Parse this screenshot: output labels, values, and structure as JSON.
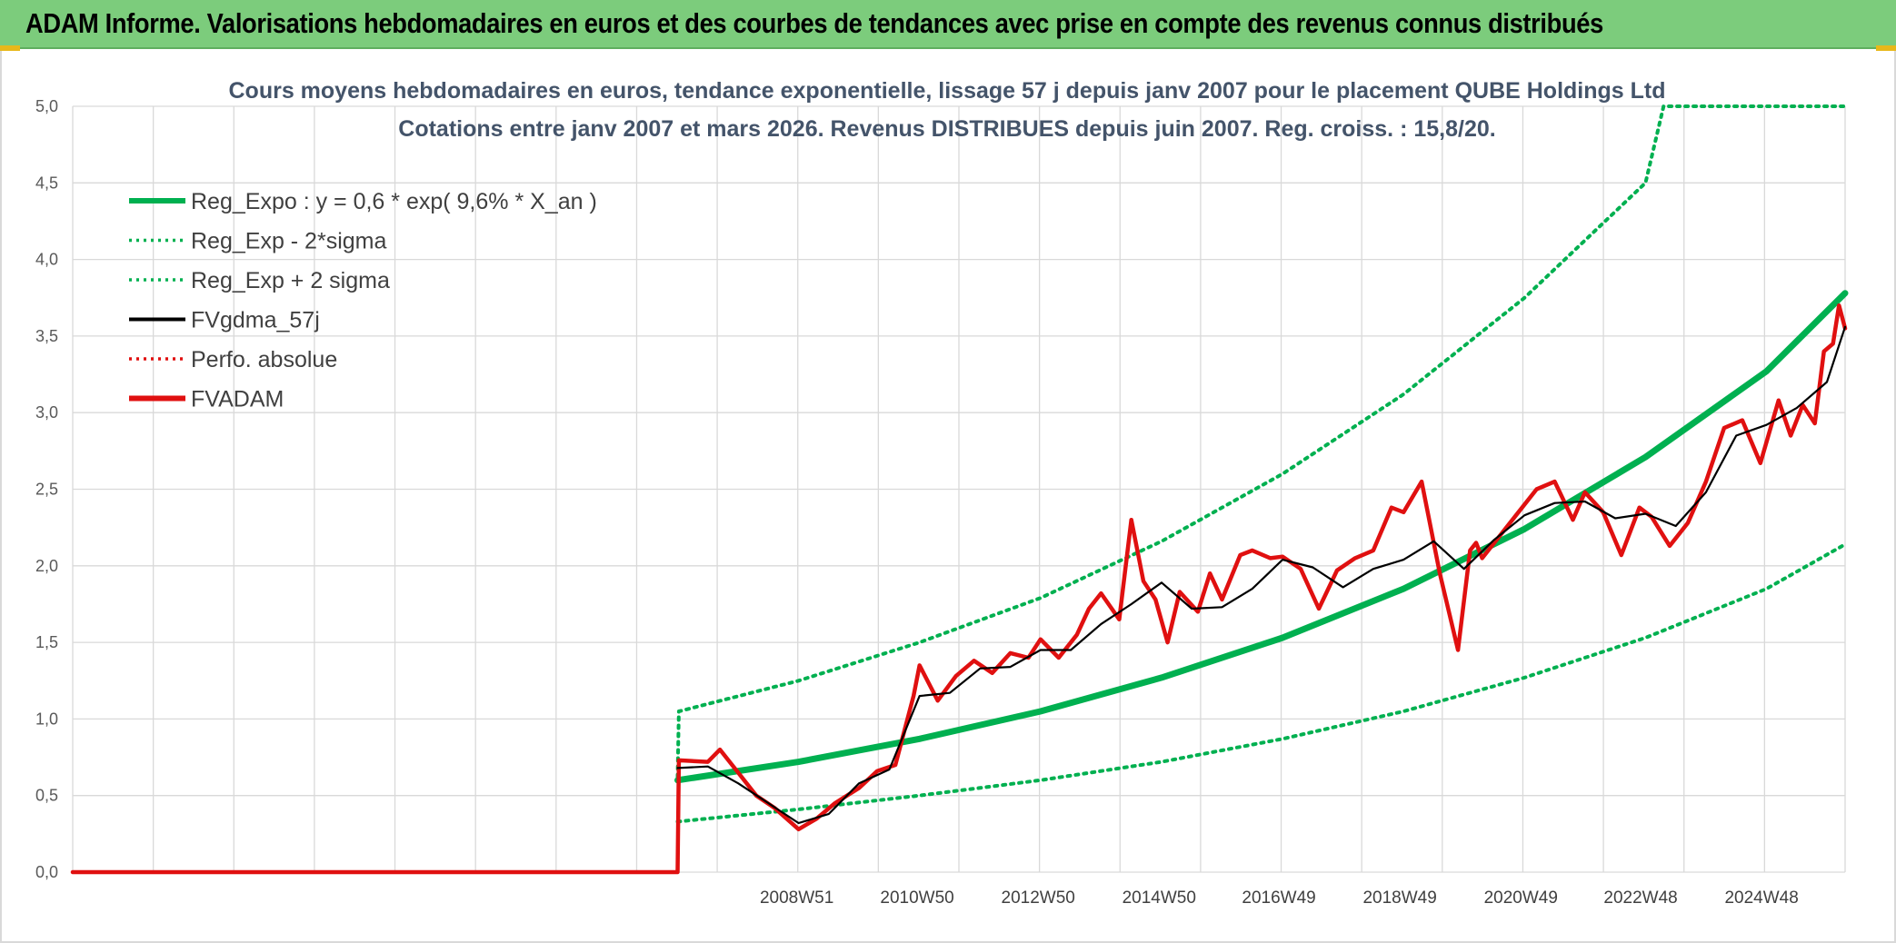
{
  "header": {
    "title": "ADAM Informe. Valorisations hebdomadaires en euros et des courbes de tendances avec prise en compte des revenus connus distribués"
  },
  "colors": {
    "header_bg": "#7ccc7c",
    "reg_expo": "#00b050",
    "fvgdma": "#000000",
    "fvadam": "#e01010",
    "perfo": "#e01010"
  },
  "chart_data": {
    "type": "line",
    "title": "Cours moyens hebdomadaires en euros, tendance exponentielle, lissage 57 j depuis janv 2007 pour le placement QUBE Holdings Ltd",
    "subtitle": "Cotations entre janv 2007 et mars 2026. Revenus DISTRIBUES depuis juin 2007. Reg. croiss. : 15,8/20.",
    "xlabel": "",
    "ylabel": "",
    "ylim": [
      0,
      5
    ],
    "y_ticks": [
      "0,0",
      "0,5",
      "1,0",
      "1,5",
      "2,0",
      "2,5",
      "3,0",
      "3,5",
      "4,0",
      "4,5",
      "5,0"
    ],
    "x_range": [
      1997.0,
      2026.3
    ],
    "x_ticks": [
      {
        "label": "2008W51",
        "x": 2008.97
      },
      {
        "label": "2010W50",
        "x": 2010.96
      },
      {
        "label": "2012W50",
        "x": 2012.96
      },
      {
        "label": "2014W50",
        "x": 2014.96
      },
      {
        "label": "2016W49",
        "x": 2016.94
      },
      {
        "label": "2018W49",
        "x": 2018.94
      },
      {
        "label": "2020W49",
        "x": 2020.94
      },
      {
        "label": "2022W48",
        "x": 2022.92
      },
      {
        "label": "2024W48",
        "x": 2024.92
      }
    ],
    "grid": true,
    "legend_position": "top-left",
    "legend": [
      {
        "label": "Reg_Expo : y = 0,6 * exp( 9,6% *  X_an )",
        "color": "#00b050",
        "style": "solid-thick"
      },
      {
        "label": "Reg_Exp - 2*sigma",
        "color": "#00b050",
        "style": "dotted"
      },
      {
        "label": "Reg_Exp + 2 sigma",
        "color": "#00b050",
        "style": "dotted"
      },
      {
        "label": "FVgdma_57j",
        "color": "#000000",
        "style": "solid"
      },
      {
        "label": "Perfo. absolue",
        "color": "#e01010",
        "style": "dotted"
      },
      {
        "label": "FVADAM",
        "color": "#e01010",
        "style": "solid-thick"
      }
    ],
    "series": [
      {
        "name": "Reg_Expo : y = 0,6 * exp( 9,6% *  X_an )",
        "color": "#00b050",
        "style": "solid-thick",
        "x": [
          2007.0,
          2009.0,
          2011.0,
          2013.0,
          2015.0,
          2017.0,
          2019.0,
          2021.0,
          2023.0,
          2025.0,
          2026.3
        ],
        "y": [
          0.6,
          0.72,
          0.87,
          1.05,
          1.27,
          1.53,
          1.85,
          2.24,
          2.71,
          3.27,
          3.78
        ]
      },
      {
        "name": "Reg_Exp - 2*sigma",
        "color": "#00b050",
        "style": "dotted",
        "x": [
          2007.0,
          2009.0,
          2011.0,
          2013.0,
          2015.0,
          2017.0,
          2019.0,
          2021.0,
          2023.0,
          2025.0,
          2026.3
        ],
        "y": [
          0.33,
          0.41,
          0.5,
          0.6,
          0.72,
          0.87,
          1.05,
          1.27,
          1.53,
          1.85,
          2.14
        ]
      },
      {
        "name": "Reg_Exp + 2 sigma",
        "color": "#00b050",
        "style": "dotted",
        "x": [
          2007.0,
          2007.02,
          2009.0,
          2011.0,
          2013.0,
          2015.0,
          2017.0,
          2019.0,
          2021.0,
          2023.0,
          2023.3,
          2026.3
        ],
        "y": [
          0.62,
          1.05,
          1.25,
          1.5,
          1.79,
          2.16,
          2.6,
          3.12,
          3.75,
          4.5,
          5.0,
          5.0
        ]
      },
      {
        "name": "FVgdma_57j",
        "color": "#000000",
        "style": "solid",
        "x": [
          2007.0,
          2007.5,
          2008.0,
          2008.5,
          2009.0,
          2009.5,
          2010.0,
          2010.5,
          2011.0,
          2011.5,
          2012.0,
          2012.5,
          2013.0,
          2013.5,
          2014.0,
          2014.5,
          2015.0,
          2015.5,
          2016.0,
          2016.5,
          2017.0,
          2017.5,
          2018.0,
          2018.5,
          2019.0,
          2019.5,
          2020.0,
          2020.5,
          2021.0,
          2021.5,
          2022.0,
          2022.5,
          2023.0,
          2023.5,
          2024.0,
          2024.5,
          2025.0,
          2025.5,
          2026.0,
          2026.3
        ],
        "y": [
          0.68,
          0.69,
          0.58,
          0.45,
          0.32,
          0.38,
          0.58,
          0.67,
          1.15,
          1.17,
          1.33,
          1.34,
          1.45,
          1.45,
          1.62,
          1.75,
          1.89,
          1.72,
          1.73,
          1.85,
          2.04,
          1.99,
          1.86,
          1.98,
          2.04,
          2.16,
          1.98,
          2.17,
          2.33,
          2.41,
          2.42,
          2.31,
          2.34,
          2.26,
          2.48,
          2.85,
          2.92,
          3.03,
          3.2,
          3.56
        ]
      },
      {
        "name": "FVADAM",
        "color": "#e01010",
        "style": "solid-thick",
        "x": [
          1997.0,
          2007.0,
          2007.02,
          2007.5,
          2007.7,
          2008.0,
          2008.3,
          2008.6,
          2009.0,
          2009.3,
          2009.6,
          2010.0,
          2010.3,
          2010.6,
          2010.9,
          2011.0,
          2011.3,
          2011.6,
          2011.9,
          2012.2,
          2012.5,
          2012.8,
          2013.0,
          2013.3,
          2013.6,
          2013.8,
          2014.0,
          2014.3,
          2014.5,
          2014.7,
          2014.9,
          2015.1,
          2015.3,
          2015.6,
          2015.8,
          2016.0,
          2016.3,
          2016.5,
          2016.8,
          2017.0,
          2017.3,
          2017.6,
          2017.9,
          2018.2,
          2018.5,
          2018.8,
          2019.0,
          2019.3,
          2019.6,
          2019.9,
          2020.1,
          2020.2,
          2020.3,
          2020.6,
          2020.9,
          2021.2,
          2021.5,
          2021.8,
          2022.0,
          2022.3,
          2022.6,
          2022.9,
          2023.1,
          2023.4,
          2023.7,
          2024.0,
          2024.3,
          2024.6,
          2024.9,
          2025.2,
          2025.4,
          2025.6,
          2025.8,
          2025.95,
          2026.1,
          2026.2,
          2026.3
        ],
        "y": [
          0.0,
          0.0,
          0.73,
          0.72,
          0.8,
          0.65,
          0.5,
          0.42,
          0.28,
          0.35,
          0.45,
          0.55,
          0.66,
          0.7,
          1.15,
          1.35,
          1.12,
          1.28,
          1.38,
          1.3,
          1.43,
          1.4,
          1.52,
          1.4,
          1.55,
          1.72,
          1.82,
          1.65,
          2.3,
          1.9,
          1.78,
          1.5,
          1.83,
          1.7,
          1.95,
          1.78,
          2.07,
          2.1,
          2.05,
          2.06,
          1.98,
          1.72,
          1.97,
          2.05,
          2.1,
          2.38,
          2.35,
          2.55,
          1.95,
          1.45,
          2.1,
          2.15,
          2.05,
          2.2,
          2.35,
          2.5,
          2.55,
          2.3,
          2.48,
          2.35,
          2.07,
          2.38,
          2.32,
          2.13,
          2.28,
          2.55,
          2.9,
          2.95,
          2.67,
          3.08,
          2.85,
          3.05,
          2.93,
          3.4,
          3.45,
          3.7,
          3.55
        ]
      }
    ]
  }
}
